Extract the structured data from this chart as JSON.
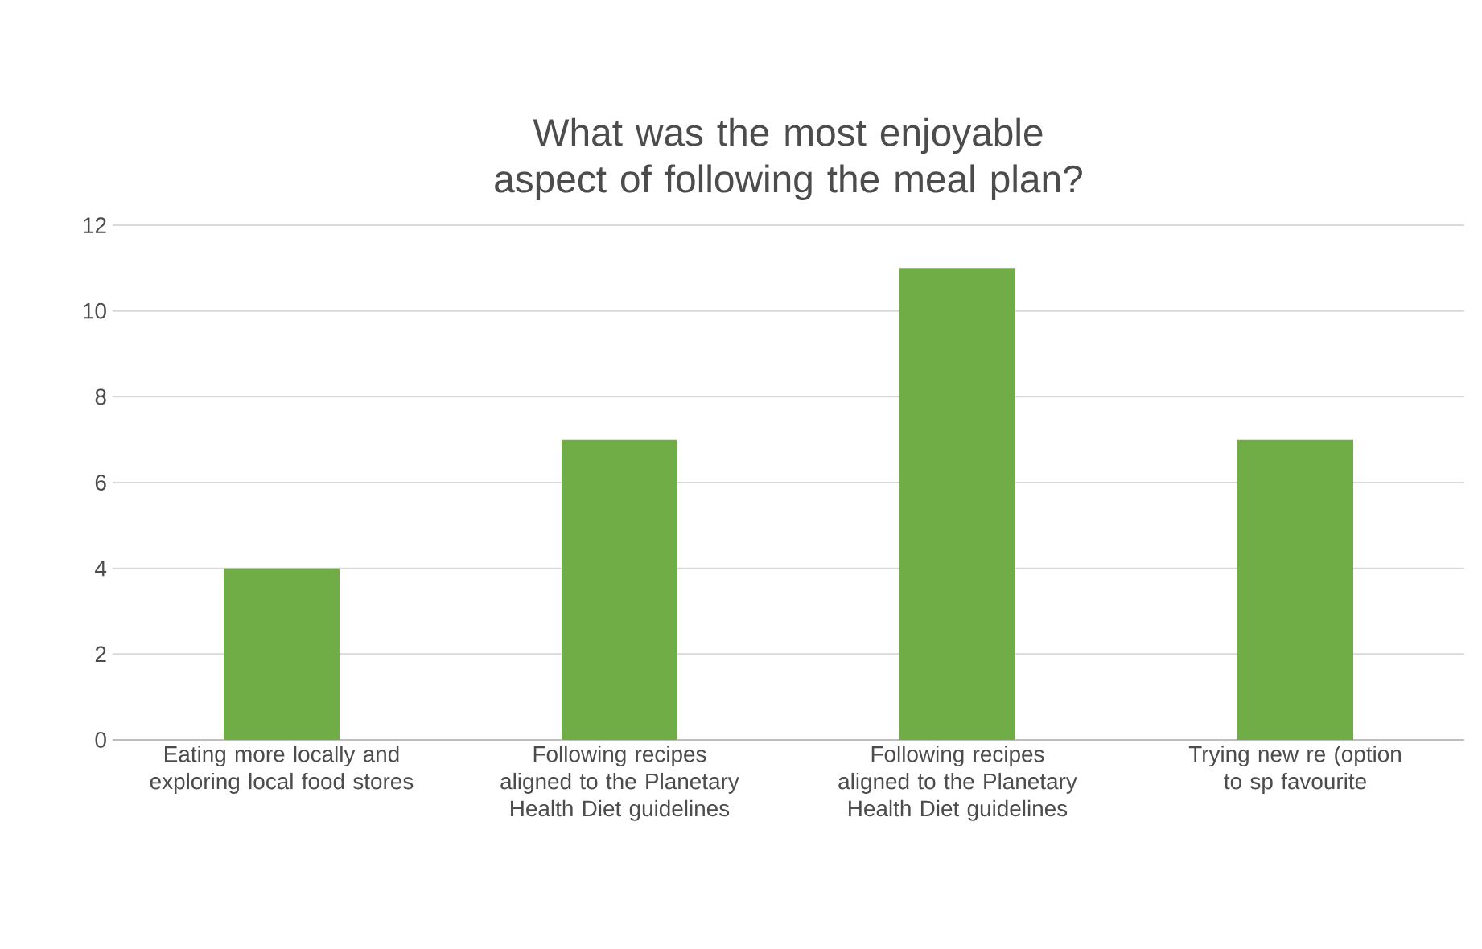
{
  "chart_data": {
    "type": "bar",
    "title": "What was the most enjoyable aspect of following the meal plan?",
    "categories": [
      "Eating more locally and exploring local food stores",
      "Following recipes aligned to the Planetary Health Diet guidelines",
      "Following recipes aligned to the Planetary Health Diet guidelines",
      "Trying new re (option to sp favourite"
    ],
    "values": [
      4,
      7,
      11,
      7
    ],
    "color": "#70ad47",
    "ylim": [
      0,
      12
    ],
    "yticks": [
      0,
      2,
      4,
      6,
      8,
      10,
      12
    ],
    "grid": "y"
  }
}
